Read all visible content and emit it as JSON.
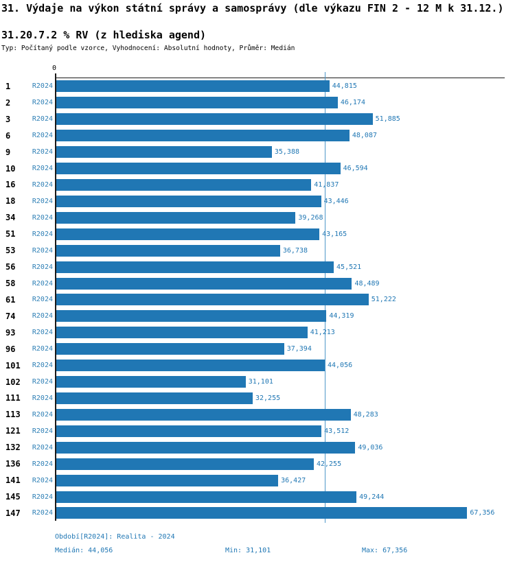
{
  "header": {
    "title": "31. Výdaje na výkon státní správy a samosprávy (dle výkazu FIN 2 - 12 M k 31.12.)",
    "subtitle": "31.20.7.2 % RV (z hlediska agend)",
    "meta": "Typ: Počítaný podle vzorce, Vyhodnocení: Absolutní hodnoty, Průměr: Medián"
  },
  "chart_data": {
    "type": "bar",
    "orientation": "horizontal",
    "title": "31. Výdaje na výkon státní správy a samosprávy (dle výkazu FIN 2 - 12 M k 31.12.)",
    "subtitle": "31.20.7.2 % RV (z hlediska agend)",
    "series_label": "R2024",
    "axis_zero_label": "0",
    "axis_max": 73500,
    "median": 44056,
    "grid": false,
    "legend_position": "none",
    "categories": [
      "1",
      "2",
      "3",
      "6",
      "9",
      "10",
      "16",
      "18",
      "34",
      "51",
      "53",
      "56",
      "58",
      "61",
      "74",
      "93",
      "96",
      "101",
      "102",
      "111",
      "113",
      "121",
      "132",
      "136",
      "141",
      "145",
      "147"
    ],
    "values": [
      44815,
      46174,
      51885,
      48087,
      35388,
      46594,
      41837,
      43446,
      39268,
      43165,
      36738,
      45521,
      48489,
      51222,
      44319,
      41213,
      37394,
      44056,
      31101,
      32255,
      48283,
      43512,
      49036,
      42255,
      36427,
      49244,
      67356
    ],
    "value_labels": [
      "44,815",
      "46,174",
      "51,885",
      "48,087",
      "35,388",
      "46,594",
      "41,837",
      "43,446",
      "39,268",
      "43,165",
      "36,738",
      "45,521",
      "48,489",
      "51,222",
      "44,319",
      "41,213",
      "37,394",
      "44,056",
      "31,101",
      "32,255",
      "48,283",
      "43,512",
      "49,036",
      "42,255",
      "36,427",
      "49,244",
      "67,356"
    ]
  },
  "footer": {
    "period": "Období[R2024]: Realita - 2024",
    "median": "Medián: 44,056",
    "min": "Min: 31,101",
    "max": "Max: 67,356"
  },
  "colors": {
    "bar": "#2077b4",
    "value_label": "#2077b4",
    "series_label": "#2d7fb5",
    "median_line": "#4d97c9",
    "axis": "#1a1a1a",
    "text": "#000000"
  }
}
